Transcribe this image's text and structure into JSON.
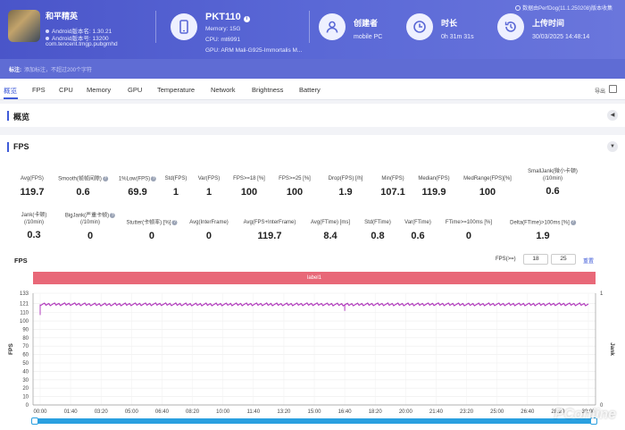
{
  "app": {
    "name": "和平精英",
    "android_version": "Android版本名: 1.30.21",
    "android_code": "Android版本号: 13200",
    "package": "com.tencent.tmgp.pubgmhd"
  },
  "device": {
    "model": "PKT110",
    "memory": "Memory: 15G",
    "cpu": "CPU: mt6991",
    "gpu": "GPU: ARM Mali-G925-Immortalis M..."
  },
  "creator": {
    "label": "创建者",
    "value": "mobile PC"
  },
  "duration": {
    "label": "时长",
    "value": "0h 31m 31s"
  },
  "upload": {
    "label": "上传时间",
    "value": "30/03/2025 14:48:14"
  },
  "top_right": "数据由PerfDog(11.1.250208)版本收集",
  "note": {
    "label": "标注:",
    "placeholder": "添加标注，不超过200个字符"
  },
  "tabs": [
    "概览",
    "FPS",
    "CPU",
    "Memory",
    "GPU",
    "Temperature",
    "Network",
    "Brightness",
    "Battery"
  ],
  "export_label": "导出",
  "sections": {
    "overview": "概览",
    "fps": "FPS"
  },
  "stats_row1": [
    {
      "label": "Avg(FPS)",
      "value": "119.7"
    },
    {
      "label": "Smooth(帧帧间隙)",
      "value": "0.6"
    },
    {
      "label": "1%Low(FPS)",
      "value": "69.9"
    },
    {
      "label": "Std(FPS)",
      "value": "1"
    },
    {
      "label": "Var(FPS)",
      "value": "1"
    },
    {
      "label": "FPS>=18 [%]",
      "value": "100"
    },
    {
      "label": "FPS>=25 [%]",
      "value": "100"
    },
    {
      "label": "Drop(FPS) [/h]",
      "value": "1.9"
    },
    {
      "label": "Min(FPS)",
      "value": "107.1"
    },
    {
      "label": "Median(FPS)",
      "value": "119.9"
    },
    {
      "label": "MedRange(FPS)[%]",
      "value": "100"
    },
    {
      "label": "SmallJank(微小卡顿)",
      "label2": "(/10min)",
      "value": "0.6"
    }
  ],
  "stats_row2": [
    {
      "label": "Jank(卡顿)",
      "label2": "(/10min)",
      "value": "0.3"
    },
    {
      "label": "BigJank(严重卡顿)",
      "label2": "(/10min)",
      "value": "0"
    },
    {
      "label": "Stutter(卡顿率) [%]",
      "value": "0"
    },
    {
      "label": "Avg(InterFrame)",
      "value": "0"
    },
    {
      "label": "Avg(FPS+InterFrame)",
      "value": "119.7"
    },
    {
      "label": "Avg(FTime) [ms]",
      "value": "8.4"
    },
    {
      "label": "Std(FTime)",
      "value": "0.8"
    },
    {
      "label": "Var(FTime)",
      "value": "0.6"
    },
    {
      "label": "FTime>=100ms [%]",
      "value": "0"
    },
    {
      "label": "Delta(FTime)>100ms [%]",
      "value": "1.9"
    }
  ],
  "chart_controls": {
    "title": "FPS",
    "threshold_label": "FPS(>=)",
    "threshold1": "18",
    "threshold2": "25",
    "reset_label": "重置"
  },
  "chart_data": {
    "type": "line",
    "label_band": "label1",
    "ylabel": "FPS",
    "y2label": "Jank",
    "yticks": [
      0,
      10,
      20,
      30,
      40,
      50,
      60,
      70,
      80,
      90,
      100,
      110,
      121,
      133
    ],
    "ylim": [
      0,
      133
    ],
    "y2ticks": [
      0,
      1
    ],
    "x": [
      "00:00",
      "01:40",
      "03:20",
      "05:00",
      "06:40",
      "08:20",
      "10:00",
      "11:40",
      "13:20",
      "15:00",
      "16:40",
      "18:20",
      "20:00",
      "21:40",
      "23:20",
      "25:00",
      "26:40",
      "28:20",
      "30:00"
    ],
    "series": [
      {
        "values": [
          119.7,
          120,
          119.5,
          119.8,
          119.9,
          119.6,
          119.7,
          119.8,
          119.7,
          119.9,
          119.5,
          119.8,
          119.7,
          119.9,
          119.6,
          119.8,
          119.7,
          119.9,
          119.7
        ],
        "color": "#b23cbd"
      }
    ],
    "dips": [
      {
        "x": "00:00",
        "y": 107.1
      },
      {
        "x": "16:40",
        "y": 112
      }
    ],
    "grid": true
  },
  "watermark": "PConline",
  "colors": {
    "accent": "#3f5bd8",
    "header": "#5a68d6",
    "label_band": "#e86878",
    "line": "#b23cbd"
  }
}
